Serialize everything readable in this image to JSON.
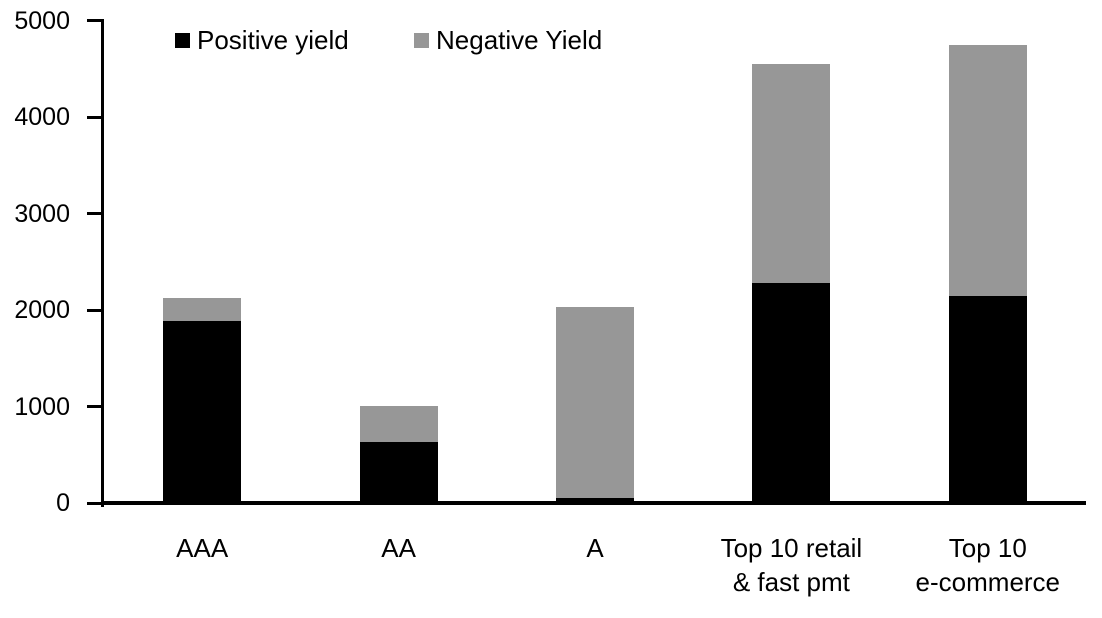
{
  "chart_data": {
    "type": "bar",
    "stacked": true,
    "title": "",
    "xlabel": "",
    "ylabel": "",
    "categories": [
      "AAA",
      "AA",
      "A",
      "Top 10 retail\n& fast pmt",
      "Top 10\ne-commerce"
    ],
    "series": [
      {
        "name": "Positive yield",
        "color": "#000000",
        "values": [
          1890,
          630,
          50,
          2280,
          2150
        ]
      },
      {
        "name": "Negative Yield",
        "color": "#979797",
        "values": [
          230,
          380,
          1980,
          2270,
          2600
        ]
      }
    ],
    "totals": [
      2120,
      1010,
      2030,
      4550,
      4750
    ],
    "ylim": [
      0,
      5000
    ],
    "yticks": [
      0,
      1000,
      2000,
      3000,
      4000,
      5000
    ],
    "grid": false,
    "legend_position": "top"
  },
  "colors": {
    "axis": "#000000",
    "background": "#ffffff",
    "positive_series": "#000000",
    "negative_series": "#979797"
  }
}
